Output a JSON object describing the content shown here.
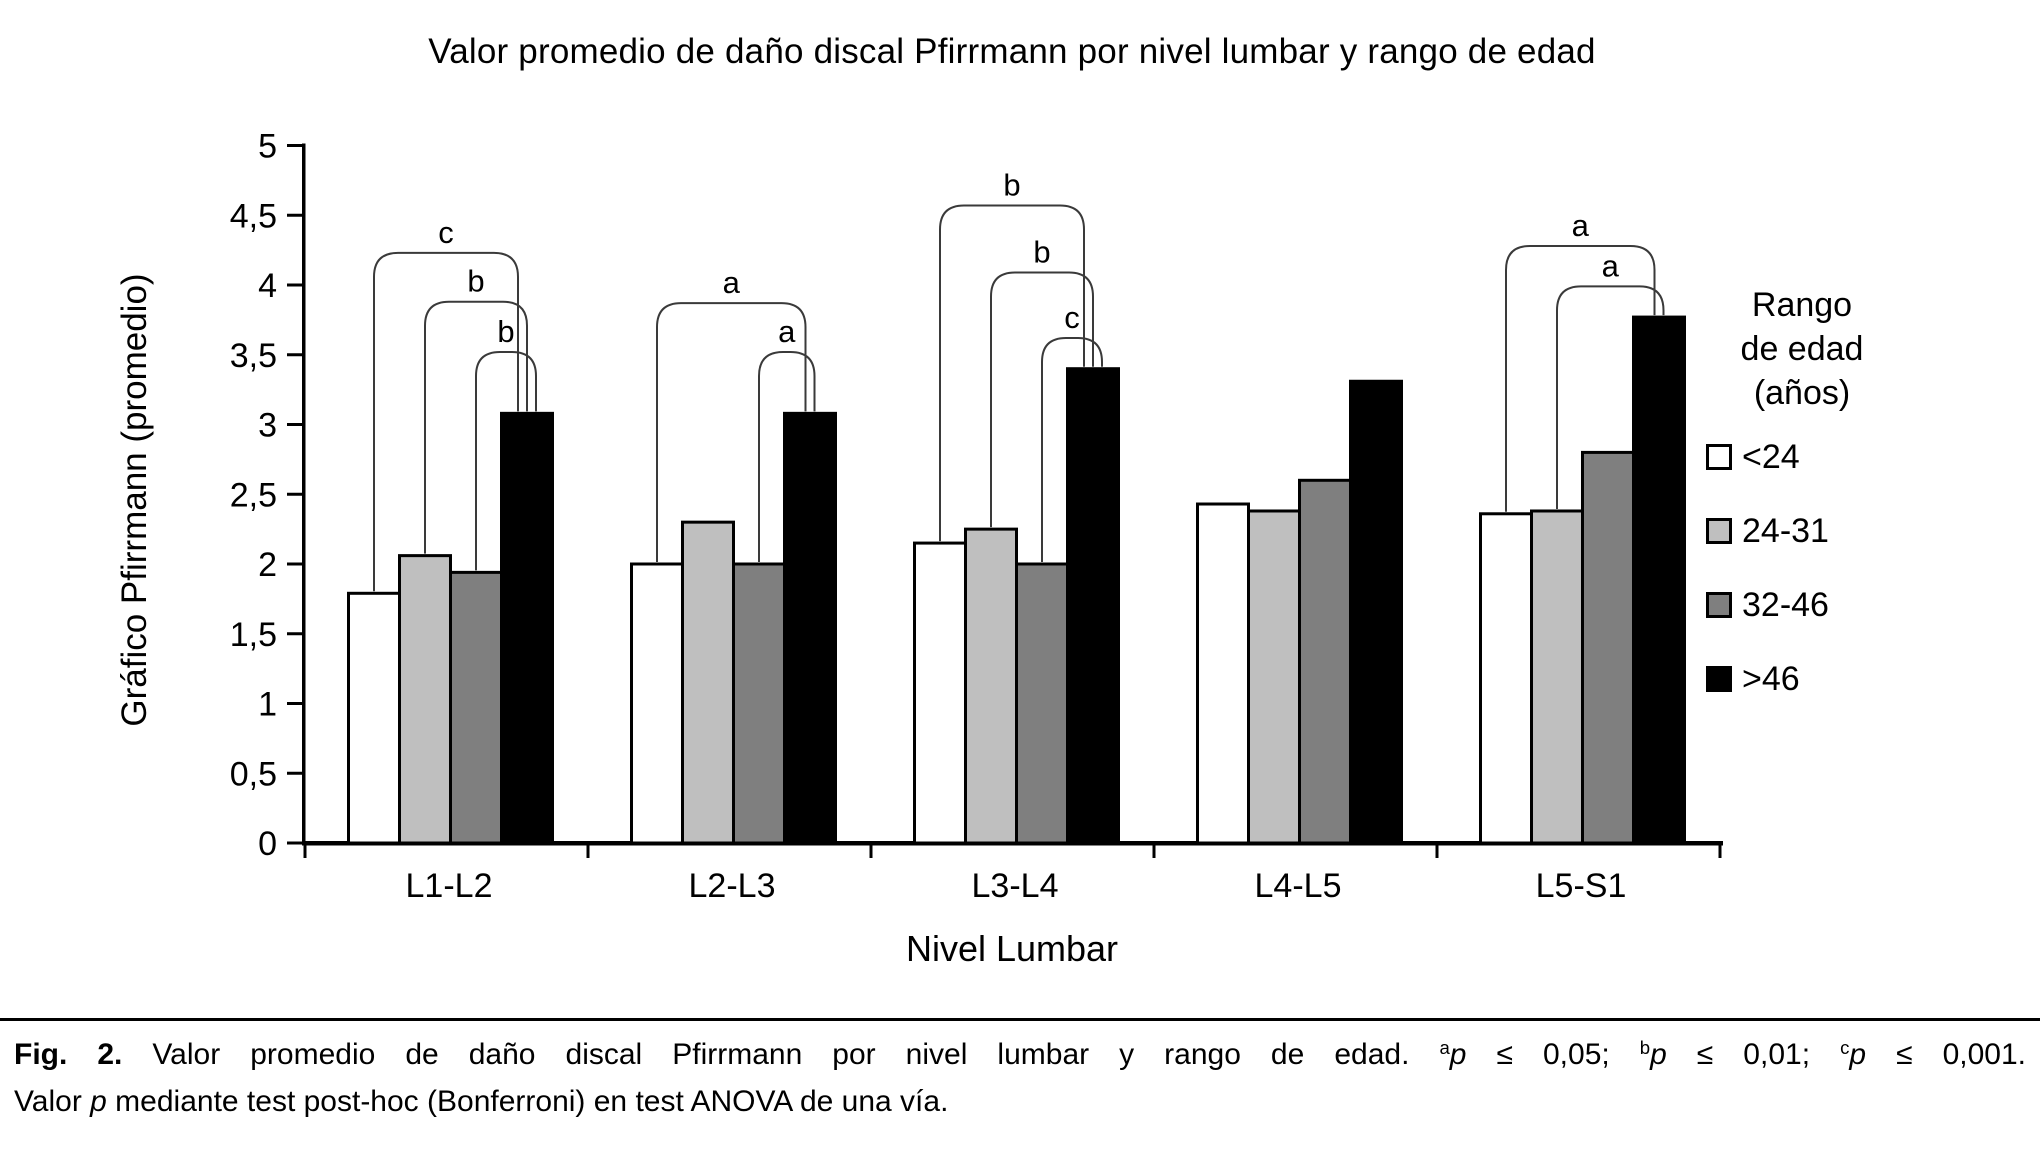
{
  "figure_title": "Valor promedio de daño discal Pfirrmann por nivel lumbar y rango de edad",
  "colors": {
    "axis": "#000000",
    "bracket_line": "#3a3a3a",
    "bar_border": "#000000",
    "background": "#ffffff"
  },
  "chart_data": {
    "type": "bar",
    "title": "Valor promedio de daño discal Pfirrmann por nivel lumbar y rango de edad",
    "xlabel": "Nivel Lumbar",
    "ylabel": "Gráfico Pfirrmann (promedio)",
    "categories": [
      "L1-L2",
      "L2-L3",
      "L3-L4",
      "L4-L5",
      "L5-S1"
    ],
    "series": [
      {
        "name": "<24",
        "color": "#ffffff",
        "values": [
          1.79,
          2.0,
          2.15,
          2.43,
          2.36
        ]
      },
      {
        "name": "24-31",
        "color": "#bfbfbf",
        "values": [
          2.06,
          2.3,
          2.25,
          2.38,
          2.38
        ]
      },
      {
        "name": "32-46",
        "color": "#7f7f7f",
        "values": [
          1.94,
          2.0,
          2.0,
          2.6,
          2.8
        ]
      },
      {
        "name": ">46",
        "color": "#000000",
        "values": [
          3.08,
          3.08,
          3.4,
          3.31,
          3.77
        ]
      }
    ],
    "ylim": [
      0,
      5
    ],
    "ytick_step": 0.5,
    "ytick_labels": [
      "0",
      "0,5",
      "1",
      "1,5",
      "2",
      "2,5",
      "3",
      "3,5",
      "4",
      "4,5",
      "5"
    ],
    "grid": false,
    "legend_position": "right",
    "legend_title_lines": [
      "Rango",
      "de edad",
      "(años)"
    ],
    "significance_brackets": [
      {
        "group": 0,
        "from": 0,
        "to": 3,
        "level": 4.23,
        "label": "c"
      },
      {
        "group": 0,
        "from": 1,
        "to": 3,
        "level": 3.88,
        "label": "b"
      },
      {
        "group": 0,
        "from": 2,
        "to": 3,
        "level": 3.52,
        "label": "b"
      },
      {
        "group": 1,
        "from": 0,
        "to": 3,
        "level": 3.87,
        "label": "a"
      },
      {
        "group": 1,
        "from": 2,
        "to": 3,
        "level": 3.52,
        "label": "a"
      },
      {
        "group": 2,
        "from": 0,
        "to": 3,
        "level": 4.57,
        "label": "b"
      },
      {
        "group": 2,
        "from": 1,
        "to": 3,
        "level": 4.09,
        "label": "b"
      },
      {
        "group": 2,
        "from": 2,
        "to": 3,
        "level": 3.62,
        "label": "c"
      },
      {
        "group": 4,
        "from": 0,
        "to": 3,
        "level": 4.28,
        "label": "a"
      },
      {
        "group": 4,
        "from": 1,
        "to": 3,
        "level": 3.99,
        "label": "a"
      }
    ]
  },
  "caption": {
    "segments": [
      {
        "t": "Fig. 2.",
        "bold": true
      },
      {
        "t": " Valor promedio de daño discal Pfirrmann por nivel lumbar y rango de edad. "
      },
      {
        "t": "a",
        "sup": true
      },
      {
        "t": "p",
        "italic": true
      },
      {
        "t": " ≤ 0,05; "
      },
      {
        "t": "b",
        "sup": true
      },
      {
        "t": "p",
        "italic": true
      },
      {
        "t": " ≤ 0,01; "
      },
      {
        "t": "c",
        "sup": true
      },
      {
        "t": "p",
        "italic": true
      },
      {
        "t": " ≤ 0,001."
      },
      {
        "br": true
      },
      {
        "t": "Valor "
      },
      {
        "t": "p",
        "italic": true
      },
      {
        "t": " mediante test post-hoc (Bonferroni) en test ANOVA de una vía."
      }
    ]
  }
}
